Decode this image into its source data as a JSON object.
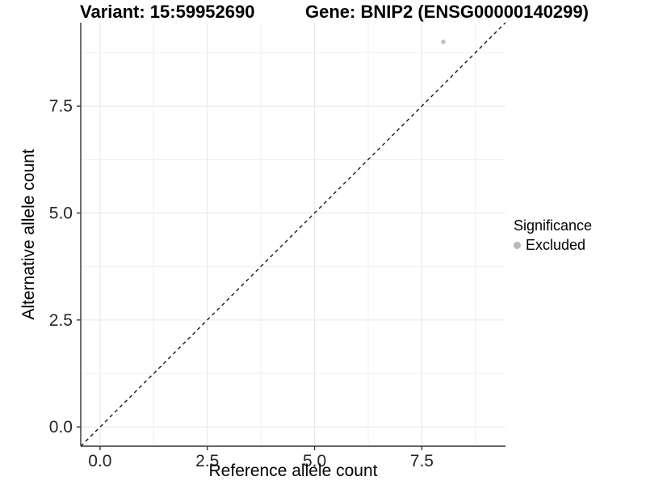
{
  "chart_data": {
    "type": "scatter",
    "title_left": "Variant: 15:59952690",
    "title_right": "Gene: BNIP2 (ENSG00000140299)",
    "xlabel": "Reference allele count",
    "ylabel": "Alternative allele count",
    "xlim": [
      -0.45,
      9.45
    ],
    "ylim": [
      -0.45,
      9.45
    ],
    "major_ticks": [
      0,
      2.5,
      5,
      7.5
    ],
    "tick_labels": [
      "0.0",
      "2.5",
      "5.0",
      "7.5"
    ],
    "minor_ticks": [
      1.25,
      3.75,
      6.25,
      8.75
    ],
    "grid": true,
    "identity_line": {
      "style": "dashed",
      "color": "#1a1a1a",
      "slope": 1,
      "intercept": 0
    },
    "points": [
      {
        "x": 8,
        "y": 9,
        "series": "Excluded"
      }
    ],
    "legend": {
      "title": "Significance",
      "position": "right",
      "items": [
        {
          "label": "Excluded",
          "color": "#b9b9b9"
        }
      ]
    },
    "colors": {
      "point": "#c0c0c0",
      "grid_major": "#e6e6e6",
      "grid_minor": "#efefef",
      "axis_line": "#333333",
      "tick_text": "#262626",
      "background": "#ffffff"
    }
  }
}
